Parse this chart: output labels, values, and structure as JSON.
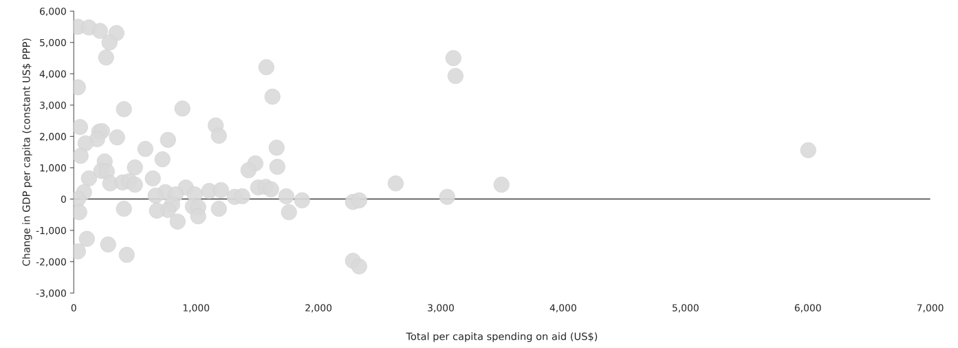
{
  "chart_data": {
    "type": "scatter",
    "xlabel": "Total per capita spending on aid (US$)",
    "ylabel": "Change in GDP per capita (constant US$ PPP)",
    "x": [
      34,
      124,
      214,
      349,
      292,
      264,
      34,
      3103,
      3120,
      6003,
      1574,
      1624,
      410,
      888,
      51,
      208,
      231,
      191,
      354,
      96,
      56,
      585,
      770,
      1160,
      1186,
      1658,
      1664,
      1484,
      1428,
      124,
      253,
      225,
      270,
      500,
      725,
      646,
      298,
      399,
      455,
      500,
      84,
      34,
      45,
      916,
      748,
      832,
      804,
      770,
      669,
      680,
      849,
      989,
      1107,
      1203,
      973,
      1017,
      1017,
      1186,
      410,
      1315,
      1377,
      1507,
      1568,
      1613,
      1737,
      1866,
      1759,
      2282,
      2333,
      2631,
      3052,
      3496,
      2282,
      2333,
      107,
      281,
      34,
      433
    ],
    "values": [
      5500,
      5480,
      5370,
      5300,
      5000,
      4520,
      3570,
      4500,
      3930,
      1560,
      4210,
      3270,
      2870,
      2890,
      2300,
      2150,
      2170,
      1910,
      1970,
      1780,
      1380,
      1600,
      1890,
      2350,
      2020,
      1640,
      1030,
      1140,
      920,
      660,
      1200,
      900,
      880,
      1010,
      1270,
      660,
      500,
      530,
      570,
      460,
      220,
      0,
      -420,
      370,
      220,
      150,
      -175,
      -350,
      110,
      -370,
      -720,
      150,
      260,
      285,
      -240,
      -260,
      -550,
      -310,
      -310,
      70,
      90,
      370,
      390,
      310,
      90,
      -40,
      -420,
      -90,
      -40,
      500,
      70,
      460,
      -1970,
      -2150,
      -1270,
      -1450,
      -1670,
      -1780
    ],
    "color": "#d9d9d9",
    "marker": "circle",
    "xlim": [
      0,
      7000
    ],
    "xticks": [
      0,
      {
        "value": 1000,
        "label": "1,000"
      },
      {
        "value": 2000,
        "label": "2,000"
      },
      {
        "value": 3000,
        "label": "3,000"
      },
      {
        "value": 4000,
        "label": "4,000"
      },
      {
        "value": 5000,
        "label": "5,000"
      },
      {
        "value": 6000,
        "label": "6,000"
      },
      {
        "value": 7000,
        "label": "7,000"
      }
    ],
    "ylim": [
      -3000,
      6000
    ],
    "yticks": [
      {
        "value": -3000,
        "label": "-3,000"
      },
      {
        "value": -2000,
        "label": "-2,000"
      },
      {
        "value": -1000,
        "label": "-1,000"
      },
      0,
      {
        "value": 1000,
        "label": "1,000"
      },
      {
        "value": 2000,
        "label": "2,000"
      },
      {
        "value": 3000,
        "label": "3,000"
      },
      {
        "value": 4000,
        "label": "4,000"
      },
      {
        "value": 5000,
        "label": "5,000"
      },
      {
        "value": 6000,
        "label": "6,000"
      }
    ],
    "ref_lines": [
      {
        "axis": "y",
        "value": 0,
        "color": "#555555"
      }
    ],
    "grid": false,
    "legend": false
  }
}
